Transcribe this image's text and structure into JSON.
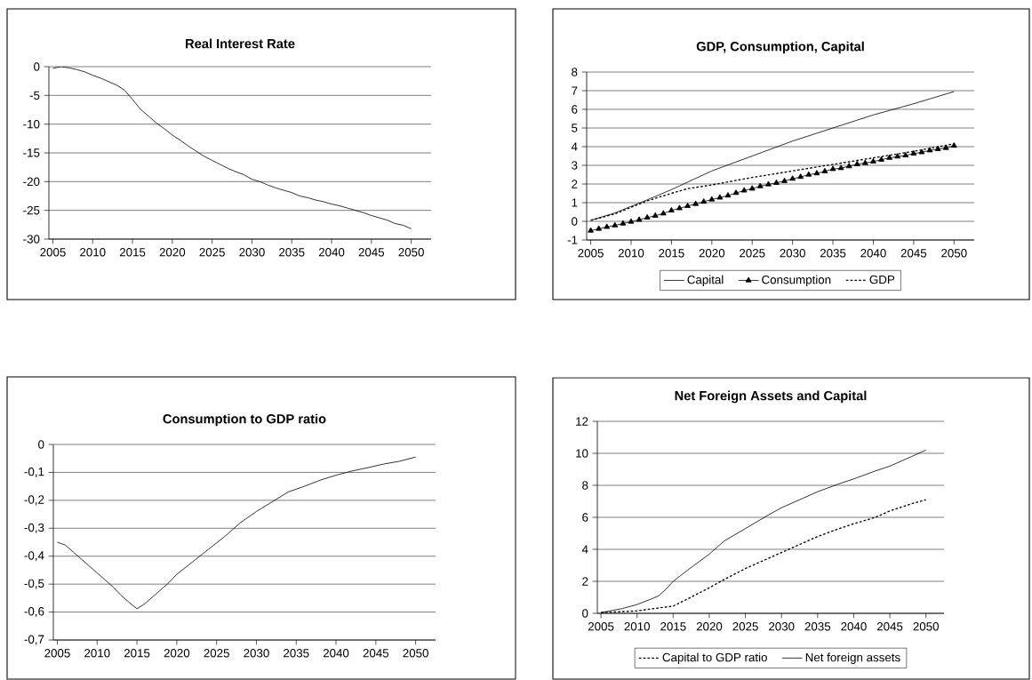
{
  "chart_data": [
    {
      "type": "line",
      "title": "Real Interest Rate",
      "x": [
        2005,
        2006,
        2007,
        2008,
        2009,
        2010,
        2011,
        2012,
        2013,
        2014,
        2015,
        2016,
        2017,
        2018,
        2019,
        2020,
        2021,
        2022,
        2023,
        2024,
        2025,
        2026,
        2027,
        2028,
        2029,
        2030,
        2031,
        2032,
        2033,
        2034,
        2035,
        2036,
        2037,
        2038,
        2039,
        2040,
        2041,
        2042,
        2043,
        2044,
        2045,
        2046,
        2047,
        2048,
        2049,
        2050
      ],
      "series": [
        {
          "color": "#000000",
          "line_style": "solid",
          "values": [
            -0.3,
            0,
            -0.2,
            -0.5,
            -0.9,
            -1.5,
            -2,
            -2.6,
            -3.2,
            -4.1,
            -5.7,
            -7.4,
            -8.6,
            -9.8,
            -10.8,
            -11.9,
            -12.8,
            -13.8,
            -14.7,
            -15.6,
            -16.3,
            -17,
            -17.7,
            -18.3,
            -18.8,
            -19.6,
            -20,
            -20.6,
            -21.1,
            -21.5,
            -21.9,
            -22.5,
            -22.8,
            -23.2,
            -23.5,
            -23.9,
            -24.2,
            -24.6,
            -25,
            -25.4,
            -25.9,
            -26.3,
            -26.7,
            -27.3,
            -27.6,
            -28.2
          ]
        }
      ],
      "xlim": [
        2004.5,
        2052.5
      ],
      "xticks": [
        2005,
        2010,
        2015,
        2020,
        2025,
        2030,
        2035,
        2040,
        2045,
        2050
      ],
      "ylim": [
        -30,
        0
      ],
      "yticks": [
        -30,
        -25,
        -20,
        -15,
        -10,
        -5,
        0
      ],
      "grid": "y",
      "legend": false
    },
    {
      "type": "line",
      "title": "GDP, Consumption, Capital",
      "series": [
        {
          "name": "Capital",
          "color": "#000000",
          "line_style": "solid",
          "marker": "none",
          "x": [
            2005,
            2008,
            2010,
            2012,
            2015,
            2017,
            2020,
            2025,
            2030,
            2035,
            2040,
            2045,
            2050
          ],
          "values": [
            0.05,
            0.45,
            0.8,
            1.15,
            1.7,
            2.1,
            2.7,
            3.5,
            4.3,
            5.0,
            5.7,
            6.3,
            6.95
          ]
        },
        {
          "name": "Consumption",
          "color": "#000000",
          "line_style": "solid",
          "marker": "triangle",
          "x": [
            2005,
            2006,
            2007,
            2008,
            2009,
            2010,
            2011,
            2012,
            2013,
            2014,
            2015,
            2016,
            2017,
            2018,
            2019,
            2020,
            2021,
            2022,
            2023,
            2024,
            2025,
            2026,
            2027,
            2028,
            2029,
            2030,
            2031,
            2032,
            2033,
            2034,
            2035,
            2036,
            2037,
            2038,
            2039,
            2040,
            2041,
            2042,
            2043,
            2044,
            2045,
            2046,
            2047,
            2048,
            2049,
            2050
          ],
          "values": [
            -0.5,
            -0.4,
            -0.3,
            -0.22,
            -0.12,
            -0.02,
            0.08,
            0.2,
            0.3,
            0.42,
            0.58,
            0.7,
            0.82,
            0.93,
            1.05,
            1.17,
            1.27,
            1.38,
            1.52,
            1.65,
            1.75,
            1.88,
            1.98,
            2.06,
            2.16,
            2.28,
            2.38,
            2.5,
            2.57,
            2.68,
            2.8,
            2.85,
            2.95,
            3.06,
            3.12,
            3.2,
            3.3,
            3.4,
            3.47,
            3.53,
            3.63,
            3.7,
            3.8,
            3.87,
            3.93,
            4.05
          ]
        },
        {
          "name": "GDP",
          "color": "#000000",
          "line_style": "dotted",
          "marker": "none",
          "x": [
            2005,
            2008,
            2010,
            2012,
            2015,
            2017,
            2020,
            2025,
            2030,
            2035,
            2040,
            2045,
            2050
          ],
          "values": [
            0.05,
            0.4,
            0.75,
            1.1,
            1.5,
            1.75,
            1.95,
            2.35,
            2.7,
            3.05,
            3.4,
            3.75,
            4.15
          ]
        }
      ],
      "xlim": [
        2004.5,
        2052.5
      ],
      "xticks": [
        2005,
        2010,
        2015,
        2020,
        2025,
        2030,
        2035,
        2040,
        2045,
        2050
      ],
      "ylim": [
        -1,
        8
      ],
      "yticks": [
        -1,
        0,
        1,
        2,
        3,
        4,
        5,
        6,
        7,
        8
      ],
      "grid": "y",
      "legend": "bottom"
    },
    {
      "type": "line",
      "title": "Consumption to GDP ratio",
      "x": [
        2005,
        2006,
        2007,
        2008,
        2009,
        2010,
        2011,
        2012,
        2013,
        2014,
        2015,
        2016,
        2017,
        2018,
        2019,
        2020,
        2022,
        2024,
        2026,
        2028,
        2030,
        2032,
        2034,
        2036,
        2038,
        2040,
        2042,
        2044,
        2046,
        2048,
        2050
      ],
      "series": [
        {
          "color": "#000000",
          "line_style": "solid",
          "values": [
            -0.35,
            -0.36,
            -0.385,
            -0.41,
            -0.435,
            -0.46,
            -0.485,
            -0.51,
            -0.54,
            -0.565,
            -0.588,
            -0.57,
            -0.545,
            -0.52,
            -0.495,
            -0.465,
            -0.42,
            -0.375,
            -0.33,
            -0.28,
            -0.24,
            -0.205,
            -0.17,
            -0.15,
            -0.128,
            -0.11,
            -0.095,
            -0.083,
            -0.07,
            -0.06,
            -0.045
          ]
        }
      ],
      "xlim": [
        2004.5,
        2052.5
      ],
      "xticks": [
        2005,
        2010,
        2015,
        2020,
        2025,
        2030,
        2035,
        2040,
        2045,
        2050
      ],
      "ylim": [
        -0.7,
        0
      ],
      "yticks": [
        {
          "value": -0.7,
          "label": "-0,7"
        },
        {
          "value": -0.6,
          "label": "-0,6"
        },
        {
          "value": -0.5,
          "label": "-0,5"
        },
        {
          "value": -0.4,
          "label": "-0,4"
        },
        {
          "value": -0.3,
          "label": "-0,3"
        },
        {
          "value": -0.2,
          "label": "-0,2"
        },
        {
          "value": -0.1,
          "label": "-0,1"
        },
        0
      ],
      "grid": "y",
      "legend": false
    },
    {
      "type": "line",
      "title": "Net Foreign Assets and Capital",
      "series": [
        {
          "name": "Capital to GDP ratio",
          "color": "#000000",
          "line_style": "dotted",
          "x": [
            2005,
            2010,
            2012,
            2015,
            2017,
            2020,
            2022,
            2025,
            2028,
            2030,
            2033,
            2035,
            2038,
            2040,
            2043,
            2045,
            2048,
            2050
          ],
          "values": [
            0.05,
            0.15,
            0.28,
            0.45,
            0.9,
            1.6,
            2.1,
            2.8,
            3.4,
            3.8,
            4.4,
            4.8,
            5.3,
            5.6,
            6.0,
            6.4,
            6.85,
            7.1
          ]
        },
        {
          "name": "Net foreign assets",
          "color": "#000000",
          "line_style": "solid",
          "x": [
            2005,
            2008,
            2010,
            2012,
            2013,
            2014,
            2015,
            2017,
            2020,
            2022,
            2025,
            2028,
            2030,
            2033,
            2035,
            2038,
            2040,
            2043,
            2045,
            2048,
            2050
          ],
          "values": [
            0.05,
            0.3,
            0.55,
            0.9,
            1.1,
            1.5,
            2.0,
            2.7,
            3.7,
            4.5,
            5.3,
            6.1,
            6.6,
            7.2,
            7.6,
            8.1,
            8.4,
            8.9,
            9.2,
            9.8,
            10.2
          ]
        }
      ],
      "xlim": [
        2004.5,
        2052.5
      ],
      "xticks": [
        2005,
        2010,
        2015,
        2020,
        2025,
        2030,
        2035,
        2040,
        2045,
        2050
      ],
      "ylim": [
        0,
        12
      ],
      "yticks": [
        0,
        2,
        4,
        6,
        8,
        10,
        12
      ],
      "grid": "y",
      "legend": "bottom"
    }
  ]
}
